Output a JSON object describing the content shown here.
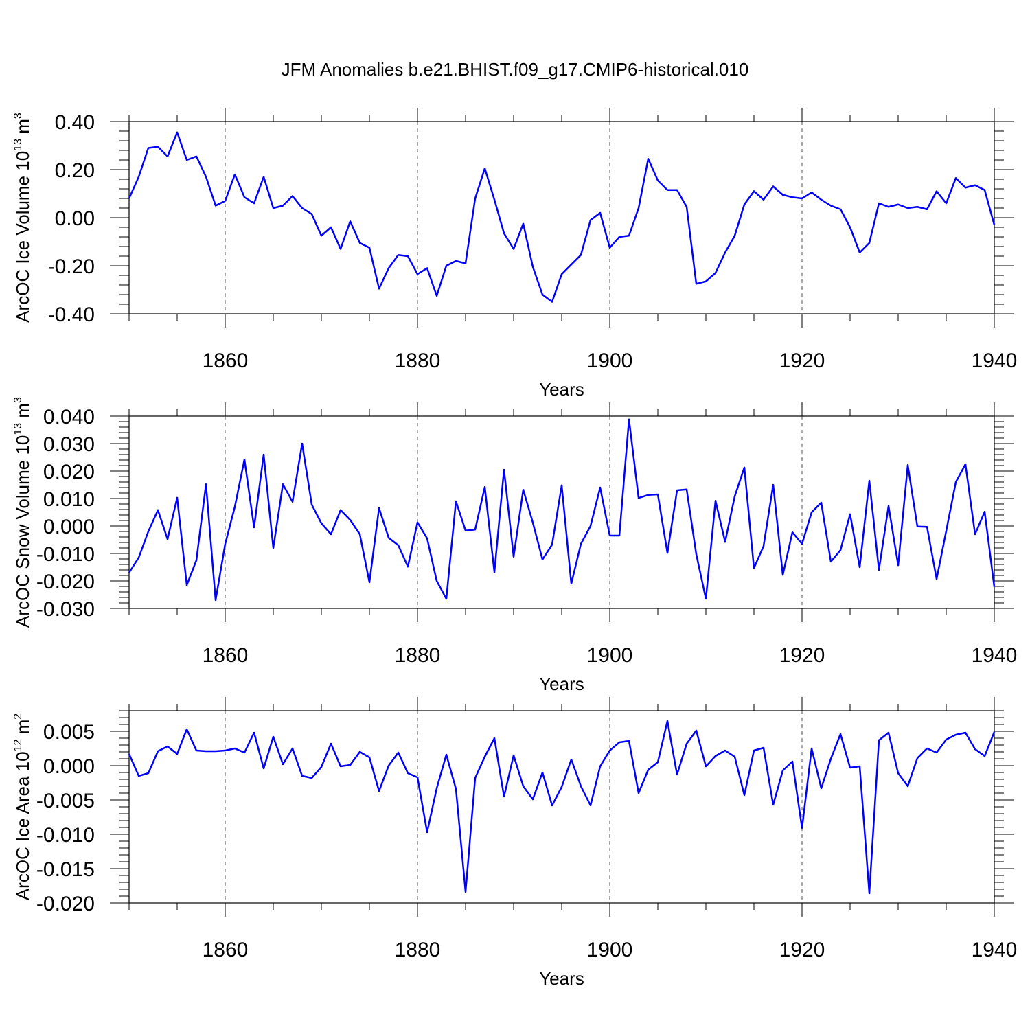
{
  "title": "JFM Anomalies b.e21.BHIST.f09_g17.CMIP6-historical.010",
  "colors": {
    "line": "#0000ff",
    "axis": "#000000",
    "gridline": "#555555",
    "background": "#ffffff"
  },
  "chart_data": [
    {
      "type": "line",
      "id": "ice-volume",
      "ylabel": "ArcOC Ice Volume 10",
      "ylabel_exp": "13",
      "ylabel_unit": " m",
      "ylabel_unit_exp": "3",
      "xlabel": "Years",
      "xlim": [
        1850,
        1940
      ],
      "ylim": [
        -0.4,
        0.4
      ],
      "yticks": [
        -0.4,
        -0.2,
        0.0,
        0.2,
        0.4
      ],
      "ytick_labels": [
        "-0.40",
        "-0.20",
        "0.00",
        "0.20",
        "0.40"
      ],
      "xticks": [
        1860,
        1880,
        1900,
        1920,
        1940
      ],
      "xtick_labels": [
        "1860",
        "1880",
        "1900",
        "1920",
        "1940"
      ],
      "vgrid": [
        1860,
        1880,
        1900,
        1920
      ],
      "x_start": 1850,
      "values": [
        0.08,
        0.17,
        0.29,
        0.295,
        0.255,
        0.355,
        0.24,
        0.255,
        0.17,
        0.05,
        0.07,
        0.18,
        0.085,
        0.06,
        0.17,
        0.04,
        0.05,
        0.09,
        0.04,
        0.015,
        -0.075,
        -0.04,
        -0.13,
        -0.015,
        -0.105,
        -0.125,
        -0.295,
        -0.21,
        -0.155,
        -0.16,
        -0.235,
        -0.21,
        -0.325,
        -0.2,
        -0.18,
        -0.19,
        0.08,
        0.205,
        0.075,
        -0.065,
        -0.13,
        -0.025,
        -0.205,
        -0.32,
        -0.35,
        -0.235,
        -0.195,
        -0.155,
        -0.01,
        0.02,
        -0.125,
        -0.08,
        -0.075,
        0.04,
        0.245,
        0.155,
        0.115,
        0.115,
        0.045,
        -0.275,
        -0.265,
        -0.23,
        -0.145,
        -0.075,
        0.055,
        0.11,
        0.075,
        0.13,
        0.095,
        0.085,
        0.08,
        0.105,
        0.075,
        0.05,
        0.035,
        -0.04,
        -0.145,
        -0.105,
        0.06,
        0.045,
        0.055,
        0.04,
        0.045,
        0.035,
        0.11,
        0.06,
        0.165,
        0.125,
        0.135,
        0.115,
        -0.03
      ]
    },
    {
      "type": "line",
      "id": "snow-volume",
      "ylabel": "ArcOC Snow Volume 10",
      "ylabel_exp": "13",
      "ylabel_unit": " m",
      "ylabel_unit_exp": "3",
      "xlabel": "Years",
      "xlim": [
        1850,
        1940
      ],
      "ylim": [
        -0.03,
        0.04
      ],
      "yticks": [
        -0.03,
        -0.02,
        -0.01,
        0.0,
        0.01,
        0.02,
        0.03,
        0.04
      ],
      "ytick_labels": [
        "-0.030",
        "-0.020",
        "-0.010",
        "0.000",
        "0.010",
        "0.020",
        "0.030",
        "0.040"
      ],
      "xticks": [
        1860,
        1880,
        1900,
        1920,
        1940
      ],
      "xtick_labels": [
        "1860",
        "1880",
        "1900",
        "1920",
        "1940"
      ],
      "vgrid": [
        1860,
        1880,
        1900,
        1920
      ],
      "x_start": 1850,
      "values": [
        -0.017,
        -0.0115,
        -0.002,
        0.0058,
        -0.0048,
        0.0103,
        -0.0215,
        -0.0125,
        0.0152,
        -0.027,
        -0.0065,
        0.007,
        0.0242,
        -0.0005,
        0.026,
        -0.008,
        0.0152,
        0.0088,
        0.03,
        0.0078,
        0.001,
        -0.003,
        0.0058,
        0.0022,
        -0.003,
        -0.0205,
        0.0065,
        -0.0043,
        -0.007,
        -0.0148,
        0.0013,
        -0.0045,
        -0.02,
        -0.0265,
        0.009,
        -0.0017,
        -0.0013,
        0.0142,
        -0.0168,
        0.0205,
        -0.0112,
        0.0132,
        0.0012,
        -0.0122,
        -0.0068,
        0.0148,
        -0.021,
        -0.0065,
        0.0,
        0.014,
        -0.0035,
        -0.0035,
        0.0388,
        0.0102,
        0.0113,
        0.0115,
        -0.0098,
        0.013,
        0.0133,
        -0.0103,
        -0.0265,
        0.0092,
        -0.0058,
        0.0108,
        0.0213,
        -0.0153,
        -0.0073,
        0.015,
        -0.0178,
        -0.0023,
        -0.0065,
        0.005,
        0.0085,
        -0.013,
        -0.0088,
        0.0043,
        -0.015,
        0.0165,
        -0.016,
        0.0073,
        -0.0143,
        0.0222,
        -0.0002,
        -0.0003,
        -0.0193,
        -0.0018,
        0.016,
        0.0225,
        -0.003,
        0.0052,
        -0.0222
      ]
    },
    {
      "type": "line",
      "id": "ice-area",
      "ylabel": "ArcOC Ice Area 10",
      "ylabel_exp": "12",
      "ylabel_unit": " m",
      "ylabel_unit_exp": "2",
      "xlabel": "Years",
      "xlim": [
        1850,
        1940
      ],
      "ylim": [
        -0.02,
        0.008
      ],
      "yticks": [
        -0.02,
        -0.015,
        -0.01,
        -0.005,
        0.0,
        0.005
      ],
      "ytick_labels": [
        "-0.020",
        "-0.015",
        "-0.010",
        "-0.005",
        "0.000",
        "0.005"
      ],
      "xticks": [
        1860,
        1880,
        1900,
        1920,
        1940
      ],
      "xtick_labels": [
        "1860",
        "1880",
        "1900",
        "1920",
        "1940"
      ],
      "vgrid": [
        1860,
        1880,
        1900,
        1920
      ],
      "x_start": 1850,
      "values": [
        0.0017,
        -0.0015,
        -0.0011,
        0.0021,
        0.0028,
        0.0017,
        0.0053,
        0.0022,
        0.0021,
        0.0021,
        0.0022,
        0.0025,
        0.0019,
        0.0048,
        -0.0004,
        0.0042,
        0.0002,
        0.0025,
        -0.0015,
        -0.0018,
        -0.0002,
        0.0032,
        -0.0001,
        0.0001,
        0.002,
        0.0012,
        -0.0037,
        0.0,
        0.0019,
        -0.0011,
        -0.0017,
        -0.0097,
        -0.0033,
        0.0016,
        -0.0034,
        -0.0184,
        -0.0018,
        0.0013,
        0.004,
        -0.0045,
        0.0015,
        -0.003,
        -0.0049,
        -0.001,
        -0.0058,
        -0.0031,
        0.0009,
        -0.003,
        -0.0058,
        -0.0001,
        0.0022,
        0.0034,
        0.0036,
        -0.004,
        -0.0006,
        0.0005,
        0.0065,
        -0.0013,
        0.0032,
        0.0051,
        -0.0001,
        0.0014,
        0.0022,
        0.0013,
        -0.0043,
        0.0022,
        0.0026,
        -0.0057,
        -0.0007,
        0.0006,
        -0.0091,
        0.0025,
        -0.0033,
        0.001,
        0.0046,
        -0.0003,
        -0.0001,
        -0.0186,
        0.0037,
        0.0048,
        -0.0011,
        -0.003,
        0.0011,
        0.0025,
        0.0019,
        0.0038,
        0.0045,
        0.0048,
        0.0024,
        0.0014,
        0.0049
      ]
    }
  ]
}
